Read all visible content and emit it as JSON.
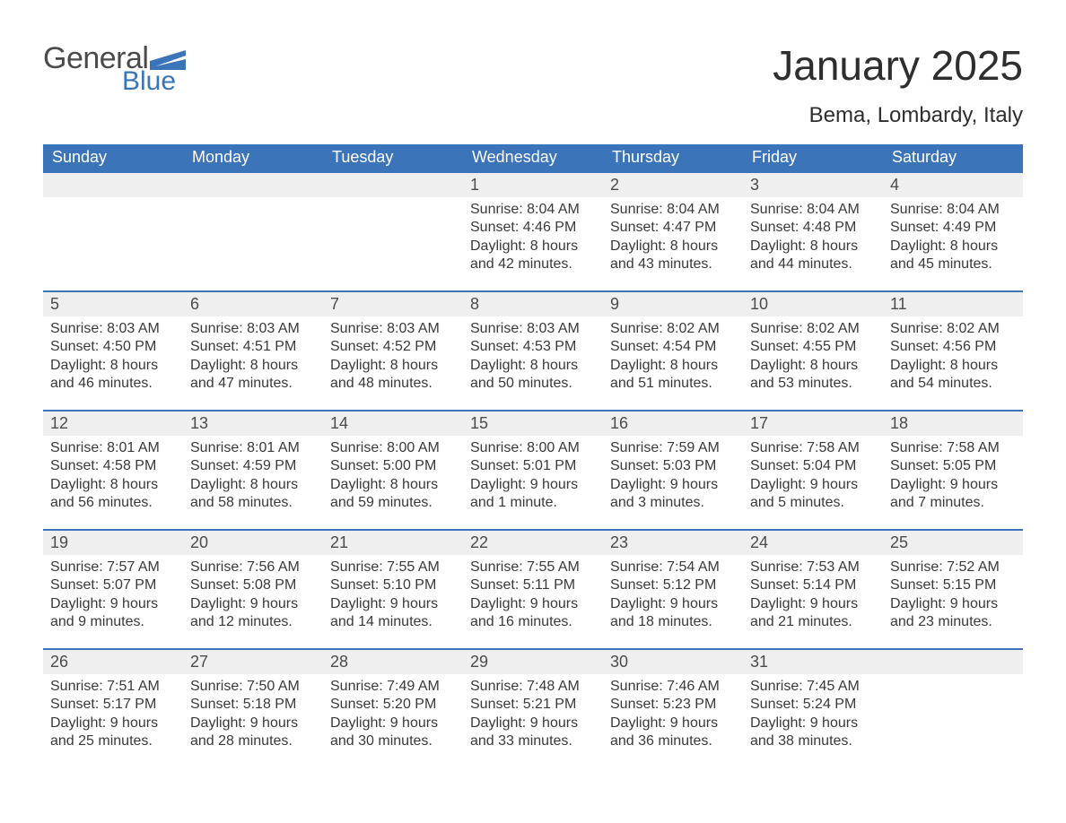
{
  "colors": {
    "accent": "#3b74b9",
    "header_text": "#ffffff",
    "daynum_bg": "#efefef",
    "text": "#2e2e2e",
    "rule": "#3b74b9",
    "background": "#ffffff"
  },
  "typography": {
    "title_fontsize": 46,
    "subtitle_fontsize": 24,
    "header_fontsize": 18,
    "daynum_fontsize": 18,
    "body_fontsize": 16,
    "font_family": "Arial"
  },
  "logo": {
    "word1": "General",
    "word2": "Blue",
    "word1_color": "#4a4a4a",
    "word2_color": "#3b74b9",
    "flag_color": "#3b74b9"
  },
  "title": "January 2025",
  "subtitle": "Bema, Lombardy, Italy",
  "day_headers": [
    "Sunday",
    "Monday",
    "Tuesday",
    "Wednesday",
    "Thursday",
    "Friday",
    "Saturday"
  ],
  "calendar": {
    "columns": 7,
    "rows": 5,
    "row_rule_color": "#3b74b9",
    "weeks": [
      [
        null,
        null,
        null,
        {
          "n": "1",
          "sunrise": "Sunrise: 8:04 AM",
          "sunset": "Sunset: 4:46 PM",
          "daylight": "Daylight: 8 hours and 42 minutes."
        },
        {
          "n": "2",
          "sunrise": "Sunrise: 8:04 AM",
          "sunset": "Sunset: 4:47 PM",
          "daylight": "Daylight: 8 hours and 43 minutes."
        },
        {
          "n": "3",
          "sunrise": "Sunrise: 8:04 AM",
          "sunset": "Sunset: 4:48 PM",
          "daylight": "Daylight: 8 hours and 44 minutes."
        },
        {
          "n": "4",
          "sunrise": "Sunrise: 8:04 AM",
          "sunset": "Sunset: 4:49 PM",
          "daylight": "Daylight: 8 hours and 45 minutes."
        }
      ],
      [
        {
          "n": "5",
          "sunrise": "Sunrise: 8:03 AM",
          "sunset": "Sunset: 4:50 PM",
          "daylight": "Daylight: 8 hours and 46 minutes."
        },
        {
          "n": "6",
          "sunrise": "Sunrise: 8:03 AM",
          "sunset": "Sunset: 4:51 PM",
          "daylight": "Daylight: 8 hours and 47 minutes."
        },
        {
          "n": "7",
          "sunrise": "Sunrise: 8:03 AM",
          "sunset": "Sunset: 4:52 PM",
          "daylight": "Daylight: 8 hours and 48 minutes."
        },
        {
          "n": "8",
          "sunrise": "Sunrise: 8:03 AM",
          "sunset": "Sunset: 4:53 PM",
          "daylight": "Daylight: 8 hours and 50 minutes."
        },
        {
          "n": "9",
          "sunrise": "Sunrise: 8:02 AM",
          "sunset": "Sunset: 4:54 PM",
          "daylight": "Daylight: 8 hours and 51 minutes."
        },
        {
          "n": "10",
          "sunrise": "Sunrise: 8:02 AM",
          "sunset": "Sunset: 4:55 PM",
          "daylight": "Daylight: 8 hours and 53 minutes."
        },
        {
          "n": "11",
          "sunrise": "Sunrise: 8:02 AM",
          "sunset": "Sunset: 4:56 PM",
          "daylight": "Daylight: 8 hours and 54 minutes."
        }
      ],
      [
        {
          "n": "12",
          "sunrise": "Sunrise: 8:01 AM",
          "sunset": "Sunset: 4:58 PM",
          "daylight": "Daylight: 8 hours and 56 minutes."
        },
        {
          "n": "13",
          "sunrise": "Sunrise: 8:01 AM",
          "sunset": "Sunset: 4:59 PM",
          "daylight": "Daylight: 8 hours and 58 minutes."
        },
        {
          "n": "14",
          "sunrise": "Sunrise: 8:00 AM",
          "sunset": "Sunset: 5:00 PM",
          "daylight": "Daylight: 8 hours and 59 minutes."
        },
        {
          "n": "15",
          "sunrise": "Sunrise: 8:00 AM",
          "sunset": "Sunset: 5:01 PM",
          "daylight": "Daylight: 9 hours and 1 minute."
        },
        {
          "n": "16",
          "sunrise": "Sunrise: 7:59 AM",
          "sunset": "Sunset: 5:03 PM",
          "daylight": "Daylight: 9 hours and 3 minutes."
        },
        {
          "n": "17",
          "sunrise": "Sunrise: 7:58 AM",
          "sunset": "Sunset: 5:04 PM",
          "daylight": "Daylight: 9 hours and 5 minutes."
        },
        {
          "n": "18",
          "sunrise": "Sunrise: 7:58 AM",
          "sunset": "Sunset: 5:05 PM",
          "daylight": "Daylight: 9 hours and 7 minutes."
        }
      ],
      [
        {
          "n": "19",
          "sunrise": "Sunrise: 7:57 AM",
          "sunset": "Sunset: 5:07 PM",
          "daylight": "Daylight: 9 hours and 9 minutes."
        },
        {
          "n": "20",
          "sunrise": "Sunrise: 7:56 AM",
          "sunset": "Sunset: 5:08 PM",
          "daylight": "Daylight: 9 hours and 12 minutes."
        },
        {
          "n": "21",
          "sunrise": "Sunrise: 7:55 AM",
          "sunset": "Sunset: 5:10 PM",
          "daylight": "Daylight: 9 hours and 14 minutes."
        },
        {
          "n": "22",
          "sunrise": "Sunrise: 7:55 AM",
          "sunset": "Sunset: 5:11 PM",
          "daylight": "Daylight: 9 hours and 16 minutes."
        },
        {
          "n": "23",
          "sunrise": "Sunrise: 7:54 AM",
          "sunset": "Sunset: 5:12 PM",
          "daylight": "Daylight: 9 hours and 18 minutes."
        },
        {
          "n": "24",
          "sunrise": "Sunrise: 7:53 AM",
          "sunset": "Sunset: 5:14 PM",
          "daylight": "Daylight: 9 hours and 21 minutes."
        },
        {
          "n": "25",
          "sunrise": "Sunrise: 7:52 AM",
          "sunset": "Sunset: 5:15 PM",
          "daylight": "Daylight: 9 hours and 23 minutes."
        }
      ],
      [
        {
          "n": "26",
          "sunrise": "Sunrise: 7:51 AM",
          "sunset": "Sunset: 5:17 PM",
          "daylight": "Daylight: 9 hours and 25 minutes."
        },
        {
          "n": "27",
          "sunrise": "Sunrise: 7:50 AM",
          "sunset": "Sunset: 5:18 PM",
          "daylight": "Daylight: 9 hours and 28 minutes."
        },
        {
          "n": "28",
          "sunrise": "Sunrise: 7:49 AM",
          "sunset": "Sunset: 5:20 PM",
          "daylight": "Daylight: 9 hours and 30 minutes."
        },
        {
          "n": "29",
          "sunrise": "Sunrise: 7:48 AM",
          "sunset": "Sunset: 5:21 PM",
          "daylight": "Daylight: 9 hours and 33 minutes."
        },
        {
          "n": "30",
          "sunrise": "Sunrise: 7:46 AM",
          "sunset": "Sunset: 5:23 PM",
          "daylight": "Daylight: 9 hours and 36 minutes."
        },
        {
          "n": "31",
          "sunrise": "Sunrise: 7:45 AM",
          "sunset": "Sunset: 5:24 PM",
          "daylight": "Daylight: 9 hours and 38 minutes."
        },
        null
      ]
    ]
  }
}
